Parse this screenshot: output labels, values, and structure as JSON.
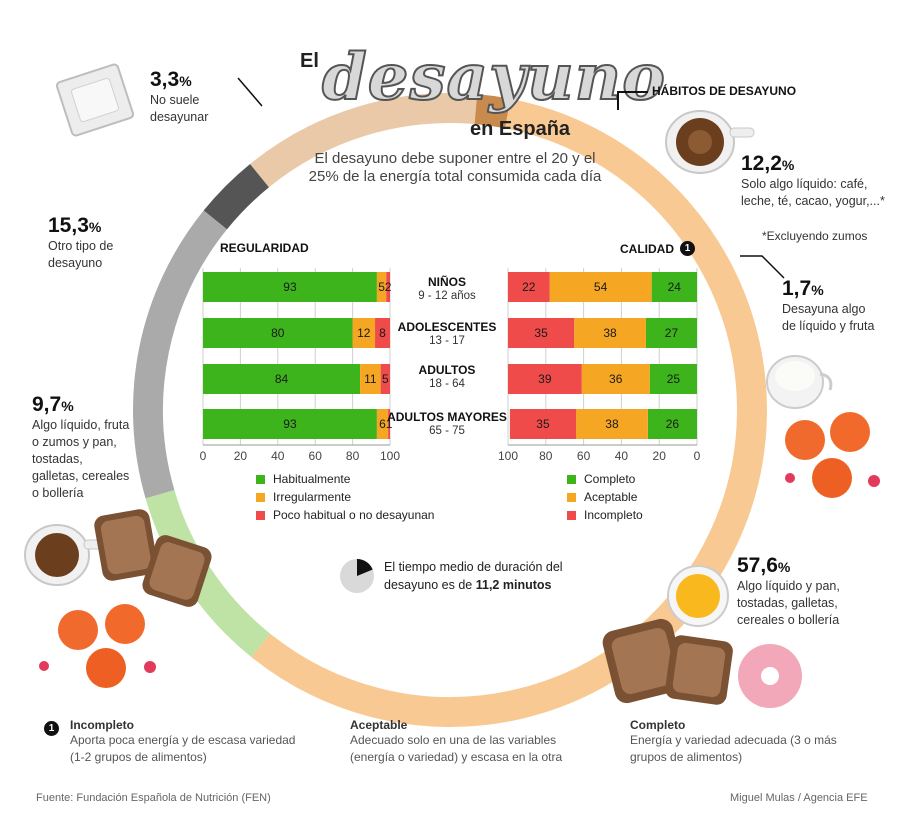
{
  "header": {
    "title_el": "El",
    "title_main": "desayuno",
    "title_sub": "en España",
    "intro": "El desayuno debe suponer entre el 20 y el 25% de la energía total consumida cada día"
  },
  "habits": {
    "title": "HÁBITOS DE DESAYUNO",
    "note": "*Excluyendo zumos",
    "segments": [
      {
        "value": "3,3",
        "unit": "%",
        "label": "No suele desayunar",
        "color": "#555555"
      },
      {
        "value": "12,2",
        "unit": "%",
        "label": "Solo algo líquido: café, leche, té, cacao, yogur,...*",
        "color": "#e9c9a8"
      },
      {
        "value": "1,7",
        "unit": "%",
        "label": "Desayuna algo de líquido y fruta",
        "color": "#c98a4e"
      },
      {
        "value": "57,6",
        "unit": "%",
        "label": "Algo líquido y pan, tostadas, galletas, cereales o bollería",
        "color": "#f8c992"
      },
      {
        "value": "9,7",
        "unit": "%",
        "label": "Algo líquido, fruta o zumos y pan, tostadas, galletas, cereales o bollería",
        "color": "#bfe3a4"
      },
      {
        "value": "15,3",
        "unit": "%",
        "label": "Otro tipo de desayuno",
        "color": "#aaaaaa"
      }
    ]
  },
  "regularidad": {
    "title": "REGULARIDAD",
    "legend": [
      "Habitualmente",
      "Irregularmente",
      "Poco habitual o no desayunan"
    ]
  },
  "calidad": {
    "title": "CALIDAD",
    "badge": "1",
    "legend": [
      "Completo",
      "Aceptable",
      "Incompleto"
    ]
  },
  "groups": [
    {
      "name": "NIÑOS",
      "range": "9 - 12 años"
    },
    {
      "name": "ADOLESCENTES",
      "range": "13 - 17"
    },
    {
      "name": "ADULTOS",
      "range": "18 - 64"
    },
    {
      "name": "ADULTOS MAYORES",
      "range": "65 - 75"
    }
  ],
  "time_note": {
    "text": "El tiempo medio de duración del desayuno es de ",
    "value": "11,2 minutos",
    "fraction_of_hour": 0.187
  },
  "footer": {
    "badge": "1",
    "items": [
      {
        "title": "Incompleto",
        "desc": "Aporta poca energía y de escasa variedad (1-2 grupos de alimentos)"
      },
      {
        "title": "Aceptable",
        "desc": "Adecuado solo en una de las variables (energía o variedad) y escasa en la otra"
      },
      {
        "title": "Completo",
        "desc": "Energía y variedad adecuada (3 o más grupos de alimentos)"
      }
    ],
    "source": "Fuente: Fundación Española de Nutrición (FEN)",
    "credit": "Miguel Mulas / Agencia EFE"
  },
  "colors": {
    "green": "#3db31c",
    "orange": "#f5a623",
    "red": "#ef4b4b"
  },
  "chart_data": [
    {
      "type": "bar",
      "title": "REGULARIDAD",
      "categories": [
        "NIÑOS",
        "ADOLESCENTES",
        "ADULTOS",
        "ADULTOS MAYORES"
      ],
      "series": [
        {
          "name": "Habitualmente",
          "values": [
            93,
            80,
            84,
            93
          ]
        },
        {
          "name": "Irregularmente",
          "values": [
            5,
            12,
            11,
            6
          ]
        },
        {
          "name": "Poco habitual o no desayunan",
          "values": [
            2,
            8,
            5,
            1
          ]
        }
      ],
      "stacked": true,
      "orientation": "horizontal",
      "xlim": [
        0,
        100
      ],
      "ticks": [
        0,
        20,
        40,
        60,
        80,
        100
      ],
      "legend_position": "bottom"
    },
    {
      "type": "bar",
      "title": "CALIDAD",
      "categories": [
        "NIÑOS",
        "ADOLESCENTES",
        "ADULTOS",
        "ADULTOS MAYORES"
      ],
      "series": [
        {
          "name": "Completo",
          "values": [
            24,
            27,
            25,
            26
          ]
        },
        {
          "name": "Aceptable",
          "values": [
            54,
            38,
            36,
            38
          ]
        },
        {
          "name": "Incompleto",
          "values": [
            22,
            35,
            39,
            35
          ]
        }
      ],
      "stacked": true,
      "orientation": "horizontal",
      "reversed_axis": true,
      "xlim": [
        0,
        100
      ],
      "ticks": [
        100,
        80,
        60,
        40,
        20,
        0
      ],
      "legend_position": "bottom"
    },
    {
      "type": "pie",
      "title": "HÁBITOS DE DESAYUNO",
      "categories": [
        "No suele desayunar",
        "Solo algo líquido",
        "Líquido y fruta",
        "Líquido y pan, tostadas, galletas, cereales o bollería",
        "Líquido, fruta o zumos y pan...",
        "Otro tipo de desayuno"
      ],
      "values": [
        3.3,
        12.2,
        1.7,
        57.6,
        9.7,
        15.3
      ]
    }
  ]
}
